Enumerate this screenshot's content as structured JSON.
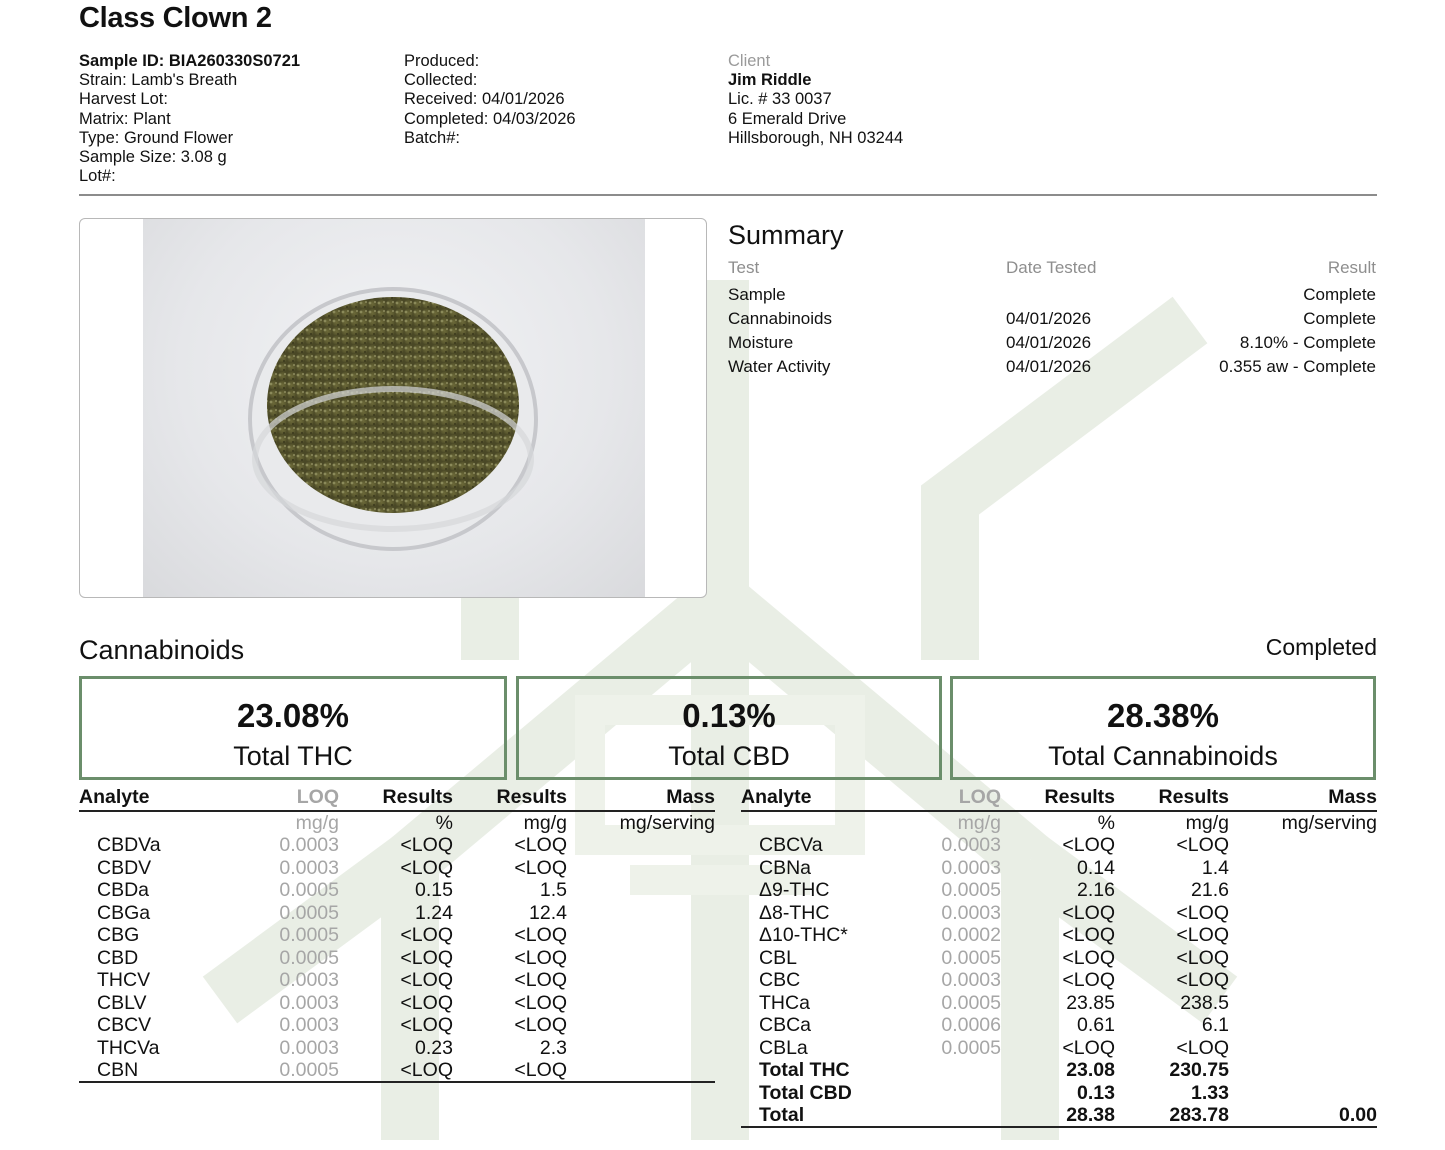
{
  "title": "Class Clown 2",
  "sample": {
    "id": "Sample ID: BIA260330S0721",
    "strain": "Strain: Lamb's Breath",
    "harvest_lot": "Harvest Lot:",
    "matrix": "Matrix: Plant",
    "type": "Type: Ground Flower",
    "size": "Sample Size: 3.08 g",
    "lot": "Lot#:"
  },
  "dates": {
    "produced": "Produced:",
    "collected": "Collected:",
    "received": "Received: 04/01/2026",
    "completed": "Completed: 04/03/2026",
    "batch": "Batch#:"
  },
  "client": {
    "label": "Client",
    "name": "Jim Riddle",
    "license": "Lic. # 33 0037",
    "address1": "6 Emerald Drive",
    "address2": "Hillsborough, NH 03244"
  },
  "colors": {
    "accent": "#6b8e6b",
    "watermark": "#e8ede4",
    "muted": "#9a9a9a"
  },
  "summary": {
    "title": "Summary",
    "headers": {
      "test": "Test",
      "date": "Date Tested",
      "result": "Result"
    },
    "rows": [
      {
        "test": "Sample",
        "date": "",
        "result": "Complete"
      },
      {
        "test": "Cannabinoids",
        "date": "04/01/2026",
        "result": "Complete"
      },
      {
        "test": "Moisture",
        "date": "04/01/2026",
        "result": "8.10% - Complete"
      },
      {
        "test": "Water Activity",
        "date": "04/01/2026",
        "result": "0.355 aw - Complete"
      }
    ]
  },
  "cannabinoids": {
    "title": "Cannabinoids",
    "status": "Completed",
    "totals": [
      {
        "value": "23.08%",
        "label": "Total THC"
      },
      {
        "value": "0.13%",
        "label": "Total CBD"
      },
      {
        "value": "28.38%",
        "label": "Total Cannabinoids"
      }
    ],
    "headers": {
      "analyte": "Analyte",
      "loq": "LOQ",
      "results": "Results",
      "results2": "Results",
      "mass": "Mass"
    },
    "units": {
      "loq": "mg/g",
      "pct": "%",
      "mgg": "mg/g",
      "mass": "mg/serving"
    },
    "left": [
      {
        "analyte": "CBDVa",
        "loq": "0.0003",
        "pct": "<LOQ",
        "mgg": "<LOQ"
      },
      {
        "analyte": "CBDV",
        "loq": "0.0003",
        "pct": "<LOQ",
        "mgg": "<LOQ"
      },
      {
        "analyte": "CBDa",
        "loq": "0.0005",
        "pct": "0.15",
        "mgg": "1.5"
      },
      {
        "analyte": "CBGa",
        "loq": "0.0005",
        "pct": "1.24",
        "mgg": "12.4"
      },
      {
        "analyte": "CBG",
        "loq": "0.0005",
        "pct": "<LOQ",
        "mgg": "<LOQ"
      },
      {
        "analyte": "CBD",
        "loq": "0.0005",
        "pct": "<LOQ",
        "mgg": "<LOQ"
      },
      {
        "analyte": "THCV",
        "loq": "0.0003",
        "pct": "<LOQ",
        "mgg": "<LOQ"
      },
      {
        "analyte": "CBLV",
        "loq": "0.0003",
        "pct": "<LOQ",
        "mgg": "<LOQ"
      },
      {
        "analyte": "CBCV",
        "loq": "0.0003",
        "pct": "<LOQ",
        "mgg": "<LOQ"
      },
      {
        "analyte": "THCVa",
        "loq": "0.0003",
        "pct": "0.23",
        "mgg": "2.3"
      },
      {
        "analyte": "CBN",
        "loq": "0.0005",
        "pct": "<LOQ",
        "mgg": "<LOQ"
      }
    ],
    "right": [
      {
        "analyte": "CBCVa",
        "loq": "0.0003",
        "pct": "<LOQ",
        "mgg": "<LOQ"
      },
      {
        "analyte": "CBNa",
        "loq": "0.0003",
        "pct": "0.14",
        "mgg": "1.4"
      },
      {
        "analyte": "Δ9-THC",
        "loq": "0.0005",
        "pct": "2.16",
        "mgg": "21.6"
      },
      {
        "analyte": "Δ8-THC",
        "loq": "0.0003",
        "pct": "<LOQ",
        "mgg": "<LOQ"
      },
      {
        "analyte": "Δ10-THC*",
        "loq": "0.0002",
        "pct": "<LOQ",
        "mgg": "<LOQ"
      },
      {
        "analyte": "CBL",
        "loq": "0.0005",
        "pct": "<LOQ",
        "mgg": "<LOQ"
      },
      {
        "analyte": "CBC",
        "loq": "0.0003",
        "pct": "<LOQ",
        "mgg": "<LOQ"
      },
      {
        "analyte": "THCa",
        "loq": "0.0005",
        "pct": "23.85",
        "mgg": "238.5"
      },
      {
        "analyte": "CBCa",
        "loq": "0.0006",
        "pct": "0.61",
        "mgg": "6.1"
      },
      {
        "analyte": "CBLa",
        "loq": "0.0005",
        "pct": "<LOQ",
        "mgg": "<LOQ"
      }
    ],
    "summary_rows": [
      {
        "analyte": "Total THC",
        "pct": "23.08",
        "mgg": "230.75",
        "mass": ""
      },
      {
        "analyte": "Total CBD",
        "pct": "0.13",
        "mgg": "1.33",
        "mass": ""
      },
      {
        "analyte": "Total",
        "pct": "28.38",
        "mgg": "283.78",
        "mass": "0.00"
      }
    ]
  }
}
